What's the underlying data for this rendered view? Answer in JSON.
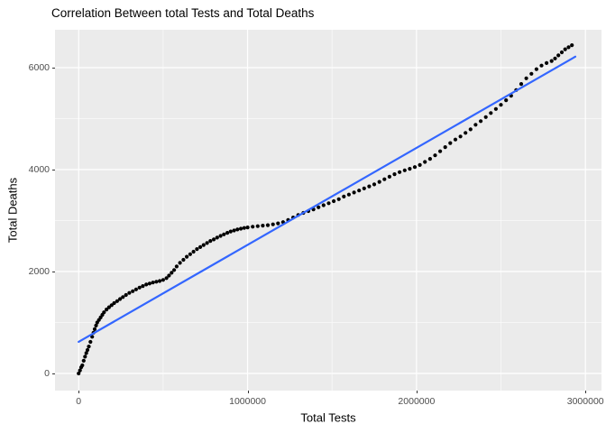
{
  "title": "Correlation Between total Tests and Total Deaths",
  "chart_data": {
    "type": "scatter",
    "title": "Correlation Between total Tests and Total Deaths",
    "xlabel": "Total Tests",
    "ylabel": "Total Deaths",
    "xlim": [
      -140000,
      3095000
    ],
    "ylim": [
      -336,
      6743
    ],
    "grid": "major+minor",
    "legend": "none",
    "panel_bg": "#EBEBEB",
    "grid_major_color": "#FFFFFF",
    "grid_minor_color": "#FFFFFF",
    "grid_minor_opacity": 0.55,
    "point_color": "#000000",
    "point_radius": 2.1,
    "smooth_line_color": "#3366FF",
    "smooth_line_width": 2.2,
    "x_ticks": [
      {
        "value": 0,
        "label": "0"
      },
      {
        "value": 1000000,
        "label": "1000000"
      },
      {
        "value": 2000000,
        "label": "2000000"
      },
      {
        "value": 3000000,
        "label": "3000000"
      }
    ],
    "y_ticks": [
      {
        "value": 0,
        "label": "0"
      },
      {
        "value": 2000,
        "label": "2000"
      },
      {
        "value": 4000,
        "label": "4000"
      },
      {
        "value": 6000,
        "label": "6000"
      }
    ],
    "x_minor_ticks": [
      500000,
      1500000,
      2500000
    ],
    "y_minor_ticks": [
      1000,
      3000,
      5000
    ],
    "regression_line": {
      "x": [
        0,
        2940000
      ],
      "y": [
        620,
        6215
      ]
    },
    "points": [
      [
        0,
        0
      ],
      [
        8000,
        60
      ],
      [
        15000,
        120
      ],
      [
        22000,
        160
      ],
      [
        30000,
        250
      ],
      [
        38000,
        330
      ],
      [
        45000,
        400
      ],
      [
        52000,
        460
      ],
      [
        60000,
        530
      ],
      [
        70000,
        620
      ],
      [
        80000,
        720
      ],
      [
        88000,
        800
      ],
      [
        95000,
        870
      ],
      [
        103000,
        940
      ],
      [
        110000,
        1000
      ],
      [
        120000,
        1050
      ],
      [
        130000,
        1100
      ],
      [
        140000,
        1150
      ],
      [
        150000,
        1200
      ],
      [
        165000,
        1255
      ],
      [
        180000,
        1300
      ],
      [
        195000,
        1340
      ],
      [
        210000,
        1380
      ],
      [
        228000,
        1420
      ],
      [
        245000,
        1460
      ],
      [
        262000,
        1500
      ],
      [
        280000,
        1540
      ],
      [
        300000,
        1580
      ],
      [
        320000,
        1615
      ],
      [
        340000,
        1650
      ],
      [
        360000,
        1685
      ],
      [
        380000,
        1715
      ],
      [
        400000,
        1745
      ],
      [
        420000,
        1765
      ],
      [
        440000,
        1785
      ],
      [
        460000,
        1800
      ],
      [
        480000,
        1815
      ],
      [
        500000,
        1835
      ],
      [
        520000,
        1870
      ],
      [
        535000,
        1920
      ],
      [
        550000,
        1975
      ],
      [
        565000,
        2030
      ],
      [
        580000,
        2100
      ],
      [
        600000,
        2170
      ],
      [
        620000,
        2230
      ],
      [
        640000,
        2290
      ],
      [
        660000,
        2340
      ],
      [
        680000,
        2390
      ],
      [
        700000,
        2440
      ],
      [
        720000,
        2480
      ],
      [
        740000,
        2520
      ],
      [
        760000,
        2560
      ],
      [
        780000,
        2600
      ],
      [
        800000,
        2630
      ],
      [
        820000,
        2665
      ],
      [
        840000,
        2700
      ],
      [
        860000,
        2730
      ],
      [
        880000,
        2760
      ],
      [
        900000,
        2785
      ],
      [
        920000,
        2805
      ],
      [
        940000,
        2825
      ],
      [
        960000,
        2840
      ],
      [
        980000,
        2855
      ],
      [
        1000000,
        2865
      ],
      [
        1030000,
        2880
      ],
      [
        1060000,
        2890
      ],
      [
        1090000,
        2900
      ],
      [
        1120000,
        2910
      ],
      [
        1150000,
        2925
      ],
      [
        1180000,
        2945
      ],
      [
        1210000,
        2970
      ],
      [
        1240000,
        3010
      ],
      [
        1270000,
        3060
      ],
      [
        1300000,
        3110
      ],
      [
        1330000,
        3150
      ],
      [
        1360000,
        3185
      ],
      [
        1390000,
        3220
      ],
      [
        1420000,
        3260
      ],
      [
        1450000,
        3300
      ],
      [
        1480000,
        3340
      ],
      [
        1510000,
        3380
      ],
      [
        1540000,
        3420
      ],
      [
        1570000,
        3470
      ],
      [
        1600000,
        3510
      ],
      [
        1630000,
        3550
      ],
      [
        1660000,
        3590
      ],
      [
        1690000,
        3630
      ],
      [
        1720000,
        3670
      ],
      [
        1750000,
        3710
      ],
      [
        1780000,
        3760
      ],
      [
        1810000,
        3810
      ],
      [
        1840000,
        3860
      ],
      [
        1870000,
        3910
      ],
      [
        1900000,
        3950
      ],
      [
        1930000,
        3985
      ],
      [
        1960000,
        4015
      ],
      [
        1990000,
        4050
      ],
      [
        2020000,
        4090
      ],
      [
        2050000,
        4150
      ],
      [
        2080000,
        4210
      ],
      [
        2110000,
        4280
      ],
      [
        2140000,
        4360
      ],
      [
        2170000,
        4440
      ],
      [
        2200000,
        4520
      ],
      [
        2230000,
        4590
      ],
      [
        2260000,
        4650
      ],
      [
        2290000,
        4720
      ],
      [
        2320000,
        4790
      ],
      [
        2350000,
        4880
      ],
      [
        2380000,
        4950
      ],
      [
        2410000,
        5030
      ],
      [
        2440000,
        5110
      ],
      [
        2470000,
        5190
      ],
      [
        2500000,
        5270
      ],
      [
        2530000,
        5360
      ],
      [
        2560000,
        5450
      ],
      [
        2590000,
        5560
      ],
      [
        2620000,
        5680
      ],
      [
        2650000,
        5790
      ],
      [
        2680000,
        5880
      ],
      [
        2710000,
        5970
      ],
      [
        2740000,
        6040
      ],
      [
        2770000,
        6090
      ],
      [
        2800000,
        6130
      ],
      [
        2820000,
        6180
      ],
      [
        2840000,
        6240
      ],
      [
        2860000,
        6300
      ],
      [
        2880000,
        6360
      ],
      [
        2900000,
        6400
      ],
      [
        2920000,
        6440
      ]
    ]
  }
}
